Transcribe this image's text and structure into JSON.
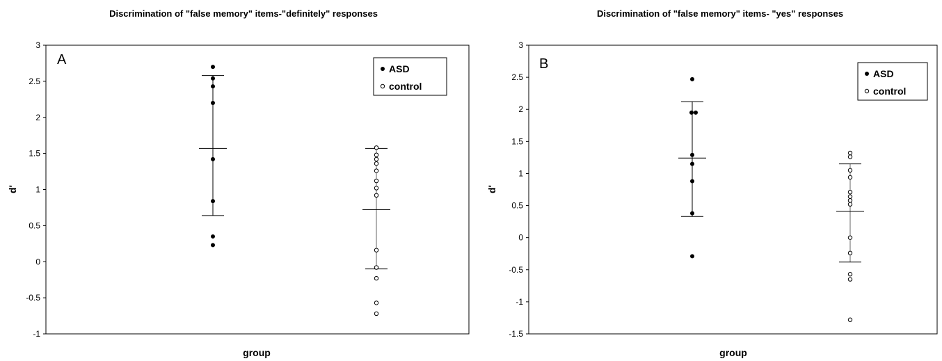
{
  "chart_data": [
    {
      "type": "scatter",
      "panel_letter": "A",
      "title": "Discrimination of \"false memory\" items-\"definitely\" responses",
      "xlabel": "group",
      "ylabel": "d'",
      "ylim": [
        -1,
        3
      ],
      "yticks": [
        -1,
        -0.5,
        0,
        0.5,
        1,
        1.5,
        2,
        2.5,
        3
      ],
      "ytick_labels": [
        "-1",
        "-0.5",
        "0",
        "0.5",
        "1",
        "1.5",
        "2",
        "2.5",
        "3"
      ],
      "categories": [
        "ASD",
        "control"
      ],
      "grid": false,
      "legend": {
        "position": "top-right",
        "entries": [
          "ASD",
          "control"
        ]
      },
      "series": [
        {
          "name": "ASD",
          "marker": "filled-circle",
          "values": [
            2.7,
            2.54,
            2.43,
            2.2,
            1.42,
            0.84,
            0.35,
            0.23
          ],
          "mean": 1.57,
          "error_low": 0.64,
          "error_high": 2.58
        },
        {
          "name": "control",
          "marker": "open-circle",
          "values": [
            1.58,
            1.48,
            1.42,
            1.36,
            1.26,
            1.12,
            1.02,
            0.92,
            0.16,
            -0.08,
            -0.23,
            -0.57,
            -0.72
          ],
          "mean": 0.72,
          "error_low": -0.1,
          "error_high": 1.57
        }
      ]
    },
    {
      "type": "scatter",
      "panel_letter": "B",
      "title": "Discrimination of \"false memory\" items- \"yes\" responses",
      "xlabel": "group",
      "ylabel": "d'",
      "ylim": [
        -1.5,
        3
      ],
      "yticks": [
        -1.5,
        -1,
        -0.5,
        0,
        0.5,
        1,
        1.5,
        2,
        2.5,
        3
      ],
      "ytick_labels": [
        "-1.5",
        "-1",
        "-0.5",
        "0",
        "0.5",
        "1",
        "1.5",
        "2",
        "2.5",
        "3"
      ],
      "categories": [
        "ASD",
        "control"
      ],
      "grid": false,
      "legend": {
        "position": "top-right",
        "entries": [
          "ASD",
          "control"
        ]
      },
      "series": [
        {
          "name": "ASD",
          "marker": "filled-circle",
          "values": [
            2.47,
            1.95,
            1.95,
            1.29,
            1.15,
            0.88,
            0.38,
            -0.29
          ],
          "mean": 1.24,
          "error_low": 0.33,
          "error_high": 2.12
        },
        {
          "name": "control",
          "marker": "open-circle",
          "values": [
            1.32,
            1.26,
            1.05,
            0.94,
            0.71,
            0.64,
            0.58,
            0.52,
            0.0,
            -0.24,
            -0.57,
            -0.65,
            -1.28
          ],
          "mean": 0.41,
          "error_low": -0.38,
          "error_high": 1.15
        }
      ]
    }
  ]
}
